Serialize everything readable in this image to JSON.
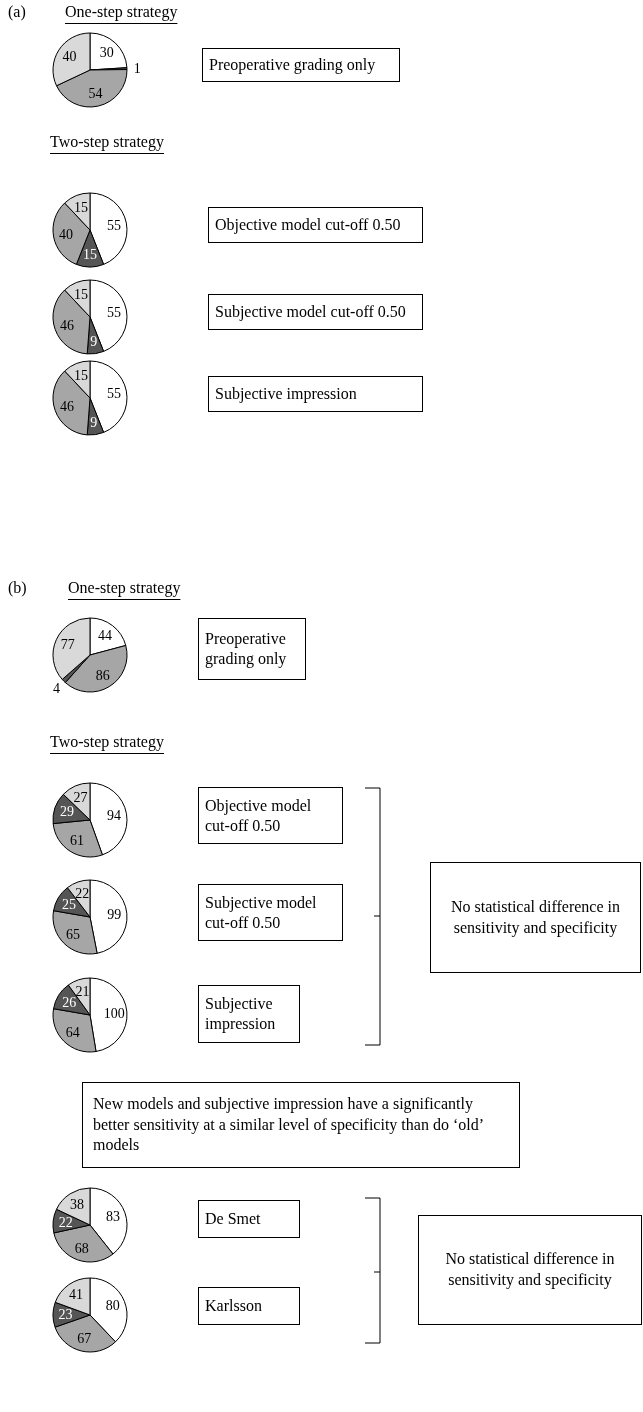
{
  "chart_data": [
    {
      "type": "pie",
      "title": "Preoperative grading only",
      "annotations": [
        "(a)",
        "One-step strategy"
      ],
      "categories": [
        null,
        null,
        null,
        null
      ],
      "values": [
        30,
        1,
        54,
        40
      ],
      "colors": [
        "#ffffff",
        "#555555",
        "#a6a6a6",
        "#d9d9d9"
      ],
      "data_labels": true
    },
    {
      "type": "pie",
      "title": "Objective model cut-off 0.50",
      "annotations": [
        "Two-step strategy"
      ],
      "categories": [
        null,
        null,
        null,
        null
      ],
      "values": [
        55,
        15,
        40,
        15
      ],
      "colors": [
        "#ffffff",
        "#555555",
        "#a6a6a6",
        "#d9d9d9"
      ],
      "data_labels": true
    },
    {
      "type": "pie",
      "title": "Subjective model cut-off 0.50",
      "categories": [
        null,
        null,
        null,
        null
      ],
      "values": [
        55,
        9,
        46,
        15
      ],
      "colors": [
        "#ffffff",
        "#555555",
        "#a6a6a6",
        "#d9d9d9"
      ],
      "data_labels": true
    },
    {
      "type": "pie",
      "title": "Subjective impression",
      "categories": [
        null,
        null,
        null,
        null
      ],
      "values": [
        55,
        9,
        46,
        15
      ],
      "colors": [
        "#ffffff",
        "#555555",
        "#a6a6a6",
        "#d9d9d9"
      ],
      "data_labels": true
    },
    {
      "type": "pie",
      "title": "Preoperative grading only",
      "annotations": [
        "(b)",
        "One-step strategy"
      ],
      "categories": [
        null,
        null,
        null,
        null
      ],
      "values": [
        44,
        86,
        4,
        77
      ],
      "colors": [
        "#ffffff",
        "#a6a6a6",
        "#555555",
        "#d9d9d9"
      ],
      "data_labels": true
    },
    {
      "type": "pie",
      "title": "Objective model cut-off 0.50",
      "annotations": [
        "Two-step strategy"
      ],
      "categories": [
        null,
        null,
        null,
        null
      ],
      "values": [
        94,
        61,
        29,
        27
      ],
      "colors": [
        "#ffffff",
        "#a6a6a6",
        "#555555",
        "#d9d9d9"
      ],
      "data_labels": true
    },
    {
      "type": "pie",
      "title": "Subjective model cut-off 0.50",
      "annotations": [
        "No statistical difference in sensitivity and specificity"
      ],
      "categories": [
        null,
        null,
        null,
        null
      ],
      "values": [
        99,
        65,
        25,
        22
      ],
      "colors": [
        "#ffffff",
        "#a6a6a6",
        "#555555",
        "#d9d9d9"
      ],
      "data_labels": true
    },
    {
      "type": "pie",
      "title": "Subjective impression",
      "categories": [
        null,
        null,
        null,
        null
      ],
      "values": [
        100,
        64,
        26,
        21
      ],
      "colors": [
        "#ffffff",
        "#a6a6a6",
        "#555555",
        "#d9d9d9"
      ],
      "data_labels": true
    },
    {
      "type": "pie",
      "title": "De Smet",
      "annotations": [
        "New models and subjective impression have a significantly better sensitivity at a similar level of specificity than do ‘old’ models"
      ],
      "categories": [
        null,
        null,
        null,
        null
      ],
      "values": [
        83,
        68,
        22,
        38
      ],
      "colors": [
        "#ffffff",
        "#a6a6a6",
        "#555555",
        "#d9d9d9"
      ],
      "data_labels": true
    },
    {
      "type": "pie",
      "title": "Karlsson",
      "annotations": [
        "No statistical difference in sensitivity and specificity"
      ],
      "categories": [
        null,
        null,
        null,
        null
      ],
      "values": [
        80,
        67,
        23,
        41
      ],
      "colors": [
        "#ffffff",
        "#a6a6a6",
        "#555555",
        "#d9d9d9"
      ],
      "data_labels": true
    }
  ]
}
